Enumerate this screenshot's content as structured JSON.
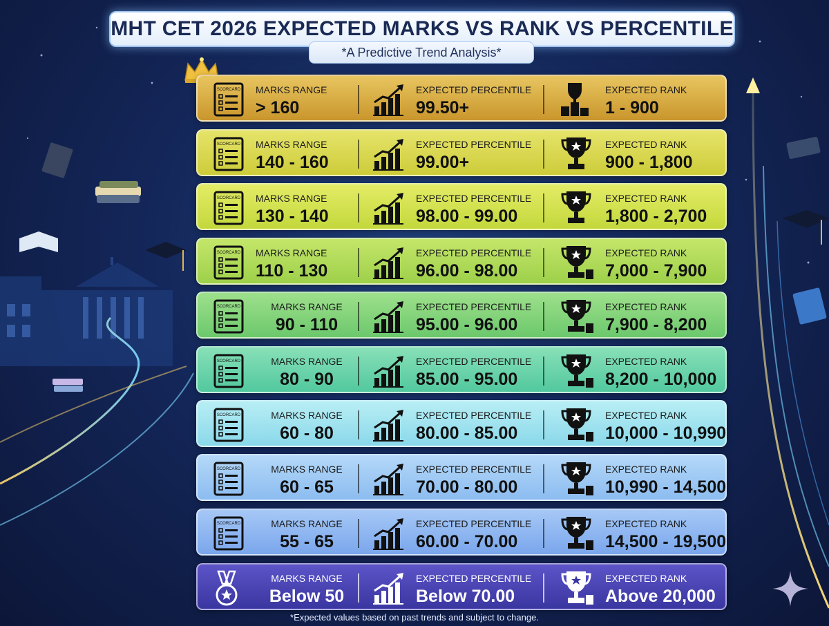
{
  "title": "MHT CET 2026 EXPECTED MARKS VS RANK VS PERCENTILE",
  "subtitle": "*A Predictive Trend Analysis*",
  "labels": {
    "marks": "MARKS RANGE",
    "percentile": "EXPECTED PERCENTILE",
    "rank": "EXPECTED RANK",
    "scorecard_text": "SCORCARD"
  },
  "rows": [
    {
      "marks": "> 160",
      "percentile": "99.50+",
      "rank": "1 - 900",
      "color_top": "#e8c560",
      "color_bottom": "#c9962c"
    },
    {
      "marks": "140 - 160",
      "percentile": "99.00+",
      "rank": "900 - 1,800",
      "color_top": "#e6e46a",
      "color_bottom": "#cdcc3a"
    },
    {
      "marks": "130 - 140",
      "percentile": "98.00 - 99.00",
      "rank": "1,800 - 2,700",
      "color_top": "#e4ec66",
      "color_bottom": "#c3d83c"
    },
    {
      "marks": "110 - 130",
      "percentile": "96.00 - 98.00",
      "rank": "7,000 - 7,900",
      "color_top": "#c4e66a",
      "color_bottom": "#9ed04a"
    },
    {
      "marks": "90 - 110",
      "percentile": "95.00 - 96.00",
      "rank": "7,900 - 8,200",
      "color_top": "#9ee08c",
      "color_bottom": "#6cc86c"
    },
    {
      "marks": "80 - 90",
      "percentile": "85.00 - 95.00",
      "rank": "8,200 - 10,000",
      "color_top": "#88e0b8",
      "color_bottom": "#52c89e"
    },
    {
      "marks": "60 - 80",
      "percentile": "80.00 - 85.00",
      "rank": "10,000 - 10,990",
      "color_top": "#b8eef4",
      "color_bottom": "#8ad8ea"
    },
    {
      "marks": "60 - 65",
      "percentile": "70.00 - 80.00",
      "rank": "10,990 - 14,500",
      "color_top": "#b4d8f8",
      "color_bottom": "#8cbcf0"
    },
    {
      "marks": "55 - 65",
      "percentile": "60.00 - 70.00",
      "rank": "14,500 - 19,500",
      "color_top": "#a6c8f6",
      "color_bottom": "#7aa6ec"
    },
    {
      "marks": "Below 50",
      "percentile": "Below 70.00",
      "rank": "Above 20,000",
      "color_top": "#5c54c8",
      "color_bottom": "#3a36a0"
    }
  ],
  "footnote": "*Expected values based on past trends and subject to change."
}
